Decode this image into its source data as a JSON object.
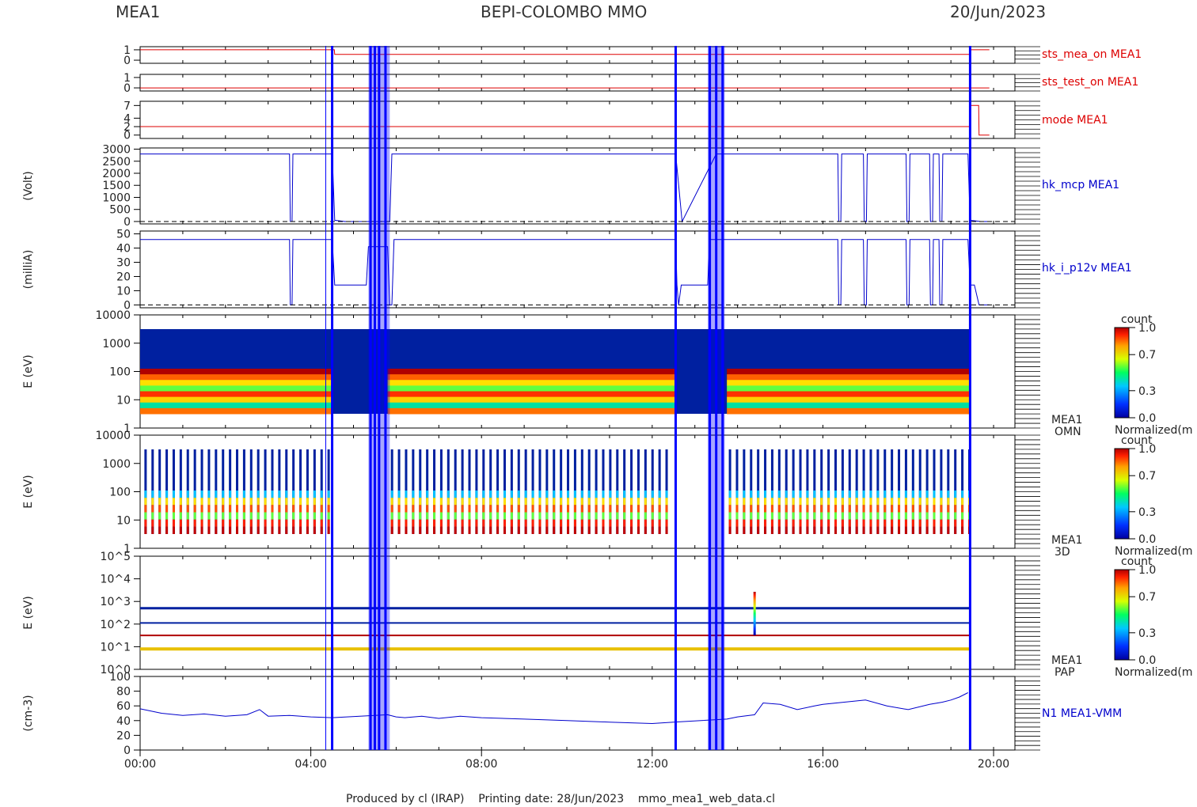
{
  "header": {
    "left": "MEA1",
    "center": "BEPI-COLOMBO MMO",
    "right": "20/Jun/2023"
  },
  "footer": "Produced by cl (IRAP)    Printing date: 28/Jun/2023    mmo_mea1_web_data.cl",
  "colors": {
    "red_trace": "#dd0000",
    "blue_trace": "#0000cc",
    "marker": "#0000ff",
    "axis": "#000000",
    "spectrogram_floor": "#0020a0"
  },
  "x_axis": {
    "ticks": [
      "00:00",
      "04:00",
      "08:00",
      "12:00",
      "16:00",
      "20:00"
    ],
    "tick_hours": [
      0,
      4,
      8,
      12,
      16,
      20
    ],
    "range_hours": [
      0,
      20.5
    ]
  },
  "colorbars": [
    {
      "top_label": "count",
      "bottom_label": "Normalized(m",
      "ticks": [
        "1.0",
        "0.7",
        "0.3",
        "0.0"
      ]
    },
    {
      "top_label": "count",
      "bottom_label": "Normalized(m",
      "ticks": [
        "1.0",
        "0.7",
        "0.3",
        "0.0"
      ]
    },
    {
      "top_label": "count",
      "bottom_label": "Normalized(m",
      "ticks": [
        "1.0",
        "0.7",
        "0.3",
        "0.0"
      ]
    }
  ],
  "chart_data": [
    {
      "type": "line",
      "panel": "sts_mea_on",
      "label": "sts_mea_on MEA1",
      "ylabel": "",
      "yticks": [
        "1",
        "0"
      ],
      "ylim": [
        -0.3,
        1.3
      ],
      "x": [
        0,
        4.55,
        4.56,
        12.55,
        12.56,
        19.45,
        19.46,
        19.9
      ],
      "y": [
        1,
        1,
        0.55,
        0.55,
        0.55,
        0.55,
        1,
        1
      ]
    },
    {
      "type": "line",
      "panel": "sts_test_on",
      "label": "sts_test_on MEA1",
      "ylabel": "",
      "yticks": [
        "1",
        "0"
      ],
      "ylim": [
        -0.3,
        1.3
      ],
      "x": [
        0,
        19.9
      ],
      "y": [
        0,
        0
      ]
    },
    {
      "type": "line",
      "panel": "mode",
      "label": "mode MEA1",
      "ylabel": "",
      "yticks": [
        "7",
        "4",
        "2",
        "0"
      ],
      "ylim": [
        -0.8,
        8
      ],
      "x": [
        0,
        19.45,
        19.46,
        19.65,
        19.66,
        19.9
      ],
      "y": [
        2,
        2,
        7,
        7,
        0,
        0
      ]
    },
    {
      "type": "line",
      "panel": "hk_mcp",
      "label": "hk_mcp MEA1",
      "ylabel": "(Volt)",
      "yticks": [
        "3000",
        "2500",
        "2000",
        "1500",
        "1000",
        "500",
        "0"
      ],
      "ylim": [
        -100,
        3050
      ],
      "x": [
        0,
        3.5,
        3.52,
        3.56,
        3.58,
        4.5,
        4.56,
        4.8,
        5.85,
        5.9,
        5.95,
        12.55,
        12.7,
        13.5,
        16.35,
        16.37,
        16.42,
        16.44,
        16.95,
        16.97,
        17.02,
        17.04,
        17.95,
        17.97,
        18.02,
        18.04,
        18.5,
        18.52,
        18.57,
        18.59,
        18.72,
        18.74,
        18.79,
        18.81,
        19.4,
        19.45,
        19.7,
        19.9
      ],
      "y": [
        2800,
        2800,
        0,
        0,
        2800,
        2800,
        50,
        0,
        0,
        2800,
        2800,
        2800,
        0,
        2800,
        2800,
        0,
        0,
        2800,
        2800,
        0,
        0,
        2800,
        2800,
        0,
        0,
        2800,
        2800,
        0,
        0,
        2800,
        2800,
        0,
        0,
        2800,
        2800,
        50,
        0,
        0
      ]
    },
    {
      "type": "line",
      "panel": "hk_i_p12v",
      "label": "hk_i_p12v MEA1",
      "ylabel": "(milliA)",
      "yticks": [
        "50",
        "40",
        "30",
        "20",
        "10",
        "0"
      ],
      "ylim": [
        -2,
        52
      ],
      "x": [
        0,
        3.5,
        3.52,
        3.56,
        3.58,
        4.5,
        4.56,
        4.65,
        5.3,
        5.35,
        5.8,
        5.85,
        5.9,
        5.95,
        12.55,
        12.58,
        12.62,
        12.68,
        13.3,
        13.35,
        14.3,
        16.35,
        16.37,
        16.42,
        16.44,
        16.95,
        16.97,
        17.02,
        17.04,
        17.95,
        17.97,
        18.02,
        18.04,
        18.5,
        18.52,
        18.57,
        18.59,
        18.72,
        18.74,
        18.79,
        18.81,
        19.4,
        19.45,
        19.55,
        19.66,
        19.9
      ],
      "y": [
        46,
        46,
        0,
        0,
        46,
        46,
        14,
        14,
        14,
        41,
        41,
        0,
        0,
        46,
        46,
        14,
        0,
        14,
        14,
        46,
        46,
        46,
        0,
        0,
        46,
        46,
        0,
        0,
        46,
        46,
        0,
        0,
        46,
        46,
        0,
        0,
        46,
        46,
        0,
        0,
        46,
        46,
        14,
        14,
        0,
        0
      ]
    },
    {
      "type": "heatmap",
      "panel": "omni_spectrogram",
      "label": "MEA1\nOMN",
      "ylabel": "E (eV)",
      "yticks": [
        "10000",
        "1000",
        "100",
        "10",
        "1"
      ],
      "ylim": [
        1,
        10000
      ],
      "gaps_hours": [
        [
          4.5,
          5.8
        ],
        [
          12.55,
          13.75
        ]
      ]
    },
    {
      "type": "heatmap",
      "panel": "3d_spectrogram",
      "label": "MEA1\n3D",
      "ylabel": "E (eV)",
      "yticks": [
        "10000",
        "1000",
        "100",
        "10",
        "1"
      ],
      "ylim": [
        1,
        10000
      ]
    },
    {
      "type": "heatmap",
      "panel": "pad_spectrogram",
      "label": "MEA1\nPAP",
      "ylabel": "E (eV)",
      "yticks": [
        "10^5",
        "10^4",
        "10^3",
        "10^2",
        "10^1",
        "10^0"
      ],
      "ylim": [
        1,
        100000
      ]
    },
    {
      "type": "line",
      "panel": "density",
      "label": "N1 MEA1-VMM",
      "ylabel": "(cm-3)",
      "yticks": [
        "100",
        "80",
        "60",
        "40",
        "20",
        "0"
      ],
      "ylim": [
        0,
        100
      ],
      "x": [
        0,
        0.5,
        1,
        1.5,
        2,
        2.5,
        2.8,
        3,
        3.5,
        4,
        4.5,
        5.8,
        6,
        6.2,
        6.6,
        7,
        7.5,
        8,
        9,
        10,
        11,
        12,
        12.5,
        13.75,
        14,
        14.4,
        14.6,
        15,
        15.4,
        15.8,
        16,
        16.5,
        17,
        17.5,
        18,
        18.5,
        18.8,
        19,
        19.2,
        19.4
      ],
      "y": [
        56,
        50,
        47,
        49,
        46,
        48,
        55,
        46,
        47,
        45,
        44,
        48,
        45,
        44,
        46,
        43,
        46,
        44,
        42,
        40,
        38,
        36,
        38,
        42,
        45,
        48,
        64,
        62,
        55,
        60,
        62,
        65,
        68,
        60,
        55,
        62,
        65,
        68,
        72,
        78
      ]
    }
  ]
}
